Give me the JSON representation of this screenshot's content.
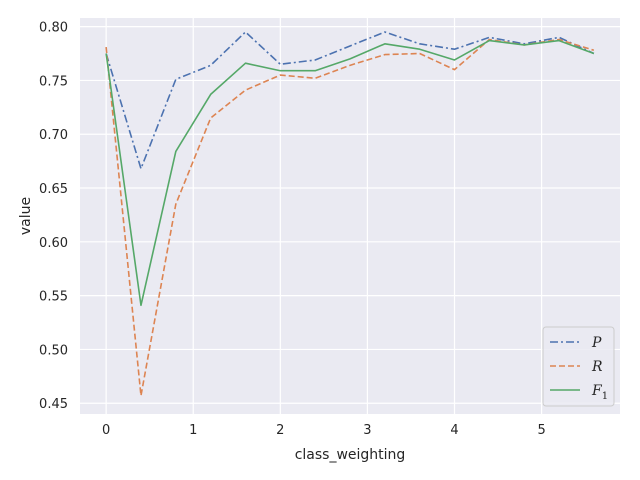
{
  "chart_data": {
    "type": "line",
    "xlabel": "class_weighting",
    "ylabel": "value",
    "xlim": [
      -0.3,
      5.9
    ],
    "ylim": [
      0.44,
      0.808
    ],
    "xticks": [
      0,
      1,
      2,
      3,
      4,
      5
    ],
    "xtick_labels": [
      "0",
      "1",
      "2",
      "3",
      "4",
      "5"
    ],
    "yticks": [
      0.45,
      0.5,
      0.55,
      0.6,
      0.65,
      0.7,
      0.75,
      0.8
    ],
    "ytick_labels": [
      "0.45",
      "0.50",
      "0.55",
      "0.60",
      "0.65",
      "0.70",
      "0.75",
      "0.80"
    ],
    "grid": true,
    "legend_position": "bottom-right",
    "x": [
      0,
      0.4,
      0.8,
      1.2,
      1.6,
      2.0,
      2.4,
      2.8,
      3.2,
      3.6,
      4.0,
      4.4,
      4.8,
      5.2,
      5.6
    ],
    "series": [
      {
        "name": "P",
        "color": "#4c72b0",
        "dash": "dashdot",
        "values": [
          0.775,
          0.668,
          0.751,
          0.764,
          0.795,
          0.765,
          0.769,
          0.782,
          0.795,
          0.784,
          0.779,
          0.79,
          0.784,
          0.79,
          0.775
        ]
      },
      {
        "name": "R",
        "color": "#dd8452",
        "dash": "dashed",
        "values": [
          0.781,
          0.457,
          0.635,
          0.715,
          0.741,
          0.755,
          0.752,
          0.764,
          0.774,
          0.775,
          0.76,
          0.788,
          0.783,
          0.788,
          0.778
        ]
      },
      {
        "name": "F",
        "name_subscript": "1",
        "color": "#55a868",
        "dash": "solid",
        "values": [
          0.775,
          0.541,
          0.684,
          0.737,
          0.766,
          0.759,
          0.759,
          0.77,
          0.784,
          0.779,
          0.769,
          0.787,
          0.783,
          0.787,
          0.775
        ]
      }
    ]
  }
}
